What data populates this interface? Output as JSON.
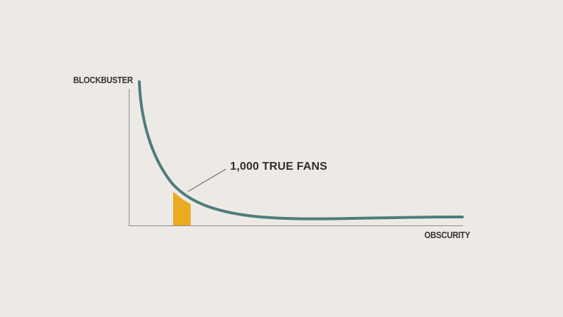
{
  "labels": {
    "y_axis": "BLOCKBUSTER",
    "x_axis": "OBSCURITY",
    "callout": "1,000 TRUE FANS"
  },
  "colors": {
    "background": "#edeae5",
    "axis": "#8a8a8a",
    "curve": "#4f7c7c",
    "highlight": "#eaaa22",
    "text": "#333333"
  }
}
